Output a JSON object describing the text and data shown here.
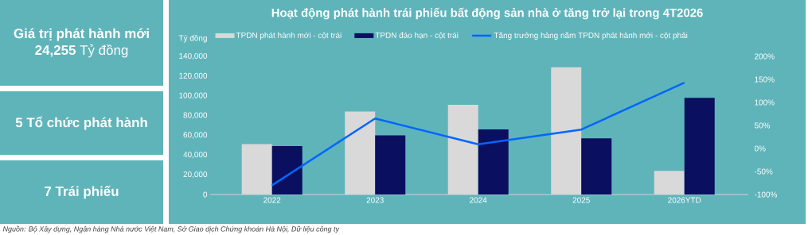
{
  "chart_data": [
    {
      "type": "other",
      "title": "Giá trị phát hành mới",
      "subtitle": "**24,255** Tỷ đồng"
    },
    {
      "type": "other",
      "title": "5 Tổ chức phát hành"
    },
    {
      "type": "other",
      "title": "7 Trái phiếu"
    },
    {
      "type": "bar",
      "title": "Hoạt động phát hành trái phiếu bất động sản nhà ở tăng trở lại trong 4T2026",
      "ylabel": "Tỷ đồng",
      "categories": [
        "2022",
        "2023",
        "2024",
        "2025",
        "2026YTD"
      ],
      "series": [
        {
          "name": "TPDN phát hành mới - cột trái",
          "color": "#d9d9d9",
          "values": [
            51000,
            84000,
            91000,
            129000,
            24000
          ]
        },
        {
          "name": "TPDN đáo hạn - cột trái",
          "color": "#0a0f5f",
          "values": [
            49000,
            60000,
            66000,
            57000,
            98000
          ]
        },
        {
          "name": "Tăng trưởng hàng năm TPDN phát hành mới - cột phải",
          "type": "line",
          "axis": "y2",
          "color": "#0066ff",
          "values": [
            -80,
            65,
            9,
            41,
            143
          ]
        }
      ],
      "ylim": [
        0,
        140000
      ],
      "yticks": [
        0,
        {
          "value": 20000,
          "label": "20,000"
        },
        {
          "value": 40000,
          "label": "40,000"
        },
        {
          "value": 60000,
          "label": "60,000"
        },
        {
          "value": 80000,
          "label": "80,000"
        },
        {
          "value": 100000,
          "label": "100,000"
        },
        {
          "value": 120000,
          "label": "120,000"
        },
        {
          "value": 140000,
          "label": "140,000"
        }
      ],
      "y2lim": [
        -100,
        200
      ],
      "y2ticks": [
        {
          "value": -100,
          "label": "-100%"
        },
        {
          "value": -50,
          "label": "-50%"
        },
        {
          "value": 0,
          "label": "0%"
        },
        {
          "value": 50,
          "label": "50%"
        },
        {
          "value": 100,
          "label": "100%"
        },
        {
          "value": 150,
          "label": "150%"
        },
        {
          "value": 200,
          "label": "200%"
        }
      ],
      "legend": "top",
      "annotations": [
        "Nguồn: Bộ Xây dựng, Ngân hàng Nhà nước Việt Nam, Sở Giao dịch Chứng khoán Hà Nội, Dữ liệu công ty"
      ]
    }
  ]
}
